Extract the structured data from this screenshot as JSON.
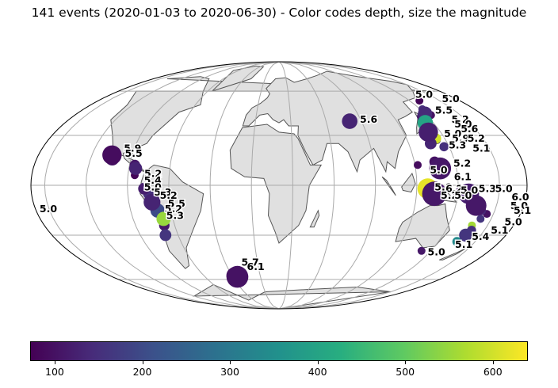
{
  "title": "141 events (2020-01-03 to 2020-06-30) - Color codes depth, size the magnitude",
  "chart_data": {
    "type": "scatter",
    "projection": "mollweide",
    "central_longitude": 20,
    "title": "141 events (2020-01-03 to 2020-06-30) - Color codes depth, size the magnitude",
    "colormap": "viridis",
    "colorbar": {
      "range": [
        72,
        640
      ],
      "ticks": [
        100,
        200,
        300,
        400,
        500,
        600
      ]
    },
    "legend": "none",
    "gridlines": true,
    "events": [
      {
        "lon": -105,
        "lat": 18,
        "mag": 5.9,
        "depth": 90
      },
      {
        "lon": -104,
        "lat": 16,
        "mag": 5.5,
        "depth": 110
      },
      {
        "lon": -86,
        "lat": 12,
        "mag": 5.2,
        "depth": 110
      },
      {
        "lon": -85,
        "lat": 10,
        "mag": 5.4,
        "depth": 130
      },
      {
        "lon": -85,
        "lat": 6,
        "mag": 5.0,
        "depth": 80
      },
      {
        "lon": -78,
        "lat": -2,
        "mag": 5.3,
        "depth": 120
      },
      {
        "lon": -75,
        "lat": -5,
        "mag": 5.2,
        "depth": 150
      },
      {
        "lon": -73,
        "lat": -10,
        "mag": 5.7,
        "depth": 130
      },
      {
        "lon": -70,
        "lat": -15,
        "mag": 5.5,
        "depth": 200
      },
      {
        "lon": -67,
        "lat": -20,
        "mag": 5.5,
        "depth": 550
      },
      {
        "lon": -68,
        "lat": -24,
        "mag": 5.2,
        "depth": 110
      },
      {
        "lon": -70,
        "lat": -30,
        "mag": 5.3,
        "depth": 160
      },
      {
        "lon": -27,
        "lat": -57,
        "mag": 5.7,
        "depth": 90
      },
      {
        "lon": -25,
        "lat": -58,
        "mag": 6.1,
        "depth": 100
      },
      {
        "lon": 80,
        "lat": 39,
        "mag": 5.6,
        "depth": 130
      },
      {
        "lon": 152,
        "lat": 47,
        "mag": 5.0,
        "depth": 150
      },
      {
        "lon": 160,
        "lat": 53,
        "mag": 5.0,
        "depth": 80
      },
      {
        "lon": 150,
        "lat": 44,
        "mag": 5.5,
        "depth": 140
      },
      {
        "lon": 154,
        "lat": 43,
        "mag": 5.0,
        "depth": 100
      },
      {
        "lon": 145,
        "lat": 42,
        "mag": 5.2,
        "depth": 110
      },
      {
        "lon": 142,
        "lat": 40,
        "mag": 5.0,
        "depth": 120
      },
      {
        "lon": 143,
        "lat": 38,
        "mag": 5.6,
        "depth": 400
      },
      {
        "lon": 138,
        "lat": 34,
        "mag": 5.0,
        "depth": 130
      },
      {
        "lon": 140,
        "lat": 32,
        "mag": 5.9,
        "depth": 120
      },
      {
        "lon": 143,
        "lat": 28,
        "mag": 5.2,
        "depth": 600
      },
      {
        "lon": 143,
        "lat": 27,
        "mag": 5.0,
        "depth": 140
      },
      {
        "lon": 137,
        "lat": 25,
        "mag": 5.3,
        "depth": 130
      },
      {
        "lon": 146,
        "lat": 23,
        "mag": 5.1,
        "depth": 150
      },
      {
        "lon": 122,
        "lat": 12,
        "mag": 5.0,
        "depth": 90
      },
      {
        "lon": 135,
        "lat": 14,
        "mag": 5.2,
        "depth": 100
      },
      {
        "lon": 138,
        "lat": 10,
        "mag": 6.1,
        "depth": 110
      },
      {
        "lon": 126,
        "lat": 0,
        "mag": 5.0,
        "depth": 80
      },
      {
        "lon": 128,
        "lat": -2,
        "mag": 6.0,
        "depth": 620
      },
      {
        "lon": 130,
        "lat": -4,
        "mag": 5.2,
        "depth": 160
      },
      {
        "lon": 133,
        "lat": -5,
        "mag": 6.3,
        "depth": 110
      },
      {
        "lon": 140,
        "lat": -3,
        "mag": 5.0,
        "depth": 120
      },
      {
        "lon": 151,
        "lat": -5,
        "mag": 5.3,
        "depth": 100
      },
      {
        "lon": 152,
        "lat": -6,
        "mag": 5.0,
        "depth": 130
      },
      {
        "lon": 158,
        "lat": -5,
        "mag": 6.0,
        "depth": 120
      },
      {
        "lon": 165,
        "lat": -12,
        "mag": 6.0,
        "depth": 110
      },
      {
        "lon": 170,
        "lat": -15,
        "mag": 5.1,
        "depth": 140
      },
      {
        "lon": 175,
        "lat": -17,
        "mag": 5.0,
        "depth": 100
      },
      {
        "lon": 172,
        "lat": -20,
        "mag": 5.0,
        "depth": 160
      },
      {
        "lon": 168,
        "lat": -24,
        "mag": 5.0,
        "depth": 560
      },
      {
        "lon": 170,
        "lat": -27,
        "mag": 5.1,
        "depth": 150
      },
      {
        "lon": 168,
        "lat": -30,
        "mag": 5.4,
        "depth": 160
      },
      {
        "lon": 165,
        "lat": -34,
        "mag": 5.1,
        "depth": 340
      },
      {
        "lon": 142,
        "lat": -40,
        "mag": 5.0,
        "depth": 110
      }
    ],
    "labels": [
      {
        "text": "5.9",
        "lon": -97,
        "lat": 20
      },
      {
        "text": "5.5",
        "lon": -95,
        "lat": 17
      },
      {
        "text": "5.2",
        "lon": -78,
        "lat": 5
      },
      {
        "text": "5.4",
        "lon": -78,
        "lat": 1
      },
      {
        "text": "5.0",
        "lon": -78,
        "lat": -3
      },
      {
        "text": "5.3",
        "lon": -71,
        "lat": -6
      },
      {
        "text": "5.2",
        "lon": -67,
        "lat": -8
      },
      {
        "text": "5.5",
        "lon": -62,
        "lat": -13
      },
      {
        "text": "5.2",
        "lon": -65,
        "lat": -16
      },
      {
        "text": "5.3",
        "lon": -65,
        "lat": -20
      },
      {
        "text": "5.7",
        "lon": -16,
        "lat": -50
      },
      {
        "text": "6.1",
        "lon": -12,
        "lat": -53
      },
      {
        "text": "5.6",
        "lon": 88,
        "lat": 38
      },
      {
        "text": "5.0",
        "lon": 160,
        "lat": 55
      },
      {
        "text": "5.0",
        "lon": 180,
        "lat": 52
      },
      {
        "text": "5.5",
        "lon": 159,
        "lat": 44
      },
      {
        "text": "5.2",
        "lon": 165,
        "lat": 38
      },
      {
        "text": "5.0",
        "lon": 164,
        "lat": 35
      },
      {
        "text": "5.6",
        "lon": 166,
        "lat": 32
      },
      {
        "text": "5.0",
        "lon": 150,
        "lat": 29
      },
      {
        "text": "5.9",
        "lon": 154,
        "lat": 26
      },
      {
        "text": "5.2",
        "lon": 166,
        "lat": 26
      },
      {
        "text": "5.3",
        "lon": 149,
        "lat": 22
      },
      {
        "text": "5.1",
        "lon": 166,
        "lat": 20
      },
      {
        "text": "5.0",
        "lon": 130,
        "lat": 7
      },
      {
        "text": "5.2",
        "lon": 148,
        "lat": 11
      },
      {
        "text": "6.1",
        "lon": 147,
        "lat": 3
      },
      {
        "text": "5.0",
        "lon": 133,
        "lat": -3
      },
      {
        "text": "6.2",
        "lon": 141,
        "lat": -4
      },
      {
        "text": "5.2",
        "lon": 138,
        "lat": -8
      },
      {
        "text": "5.0",
        "lon": 152,
        "lat": -5
      },
      {
        "text": "5.0",
        "lon": 148,
        "lat": -8
      },
      {
        "text": "5.3",
        "lon": 165,
        "lat": -4
      },
      {
        "text": "5.0",
        "lon": 177,
        "lat": -4
      },
      {
        "text": "6.0",
        "lon": 190,
        "lat": -9
      },
      {
        "text": "5.0",
        "lon": 191,
        "lat": -14
      },
      {
        "text": "5.1",
        "lon": 195,
        "lat": -17
      },
      {
        "text": "5.0",
        "lon": 202,
        "lat": -16
      },
      {
        "text": "5.0",
        "lon": 193,
        "lat": -24
      },
      {
        "text": "5.1",
        "lon": 187,
        "lat": -29
      },
      {
        "text": "5.4",
        "lon": 176,
        "lat": -33
      },
      {
        "text": "5.1",
        "lon": 168,
        "lat": -38
      },
      {
        "text": "5.0",
        "lon": 151,
        "lat": -43
      }
    ]
  }
}
